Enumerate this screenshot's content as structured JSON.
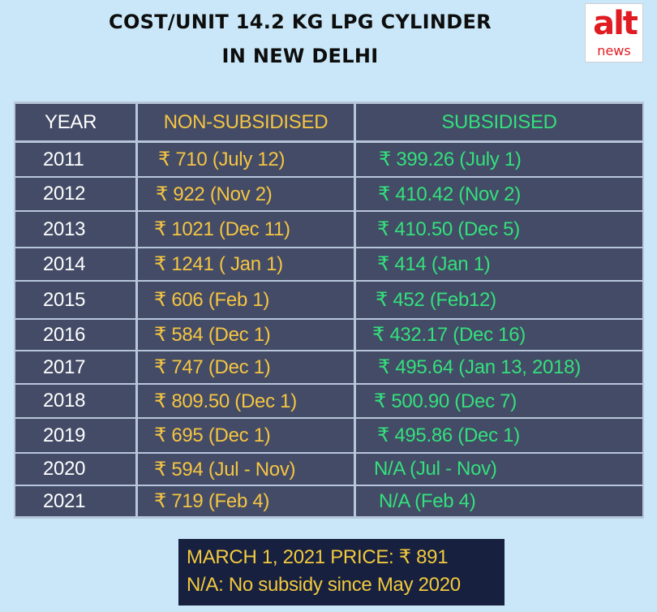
{
  "title": {
    "line1": "COST/UNIT 14.2 KG LPG CYLINDER",
    "line2": "IN NEW DELHI"
  },
  "logo": {
    "top": "alt",
    "bottom": "news",
    "color": "#e01b22"
  },
  "table": {
    "headers": [
      "YEAR",
      "NON-SUBSIDISED",
      "SUBSIDISED"
    ],
    "rows": [
      {
        "year": "2011",
        "non_subsidised": "₹ 710 (July 12)",
        "subsidised": "₹ 399.26 (July 1)"
      },
      {
        "year": "2012",
        "non_subsidised": "₹ 922 (Nov 2)",
        "subsidised": "₹ 410.42 (Nov 2)"
      },
      {
        "year": "2013",
        "non_subsidised": "₹ 1021 (Dec 11)",
        "subsidised": "₹ 410.50 (Dec 5)"
      },
      {
        "year": "2014",
        "non_subsidised": "₹ 1241 ( Jan 1)",
        "subsidised": "₹ 414 (Jan 1)"
      },
      {
        "year": "2015",
        "non_subsidised": "₹ 606 (Feb 1)",
        "subsidised": "₹ 452 (Feb12)"
      },
      {
        "year": "2016",
        "non_subsidised": "₹ 584 (Dec 1)",
        "subsidised": "₹ 432.17 (Dec 16)"
      },
      {
        "year": "2017",
        "non_subsidised": "₹ 747 (Dec 1)",
        "subsidised": "₹ 495.64 (Jan 13, 2018)"
      },
      {
        "year": "2018",
        "non_subsidised": "₹ 809.50 (Dec 1)",
        "subsidised": "₹ 500.90 (Dec 7)"
      },
      {
        "year": "2019",
        "non_subsidised": "₹ 695 (Dec 1)",
        "subsidised": "₹ 495.86 (Dec 1)"
      },
      {
        "year": "2020",
        "non_subsidised": "₹ 594 (Jul - Nov)",
        "subsidised": "N/A (Jul - Nov)"
      },
      {
        "year": "2021",
        "non_subsidised": "₹ 719 (Feb 4)",
        "subsidised": "N/A (Feb 4)"
      }
    ]
  },
  "footer": {
    "line1": "MARCH 1, 2021 PRICE: ₹ 891",
    "line2": "N/A: No subsidy since May 2020"
  },
  "colors": {
    "background": "#c9e7f8",
    "cell": "#434b66",
    "grid": "#b8c6db",
    "non_subsidised": "#f5c542",
    "subsidised": "#34e07c",
    "footer_bg": "#17203f",
    "footer_text": "#f2ca3e"
  }
}
